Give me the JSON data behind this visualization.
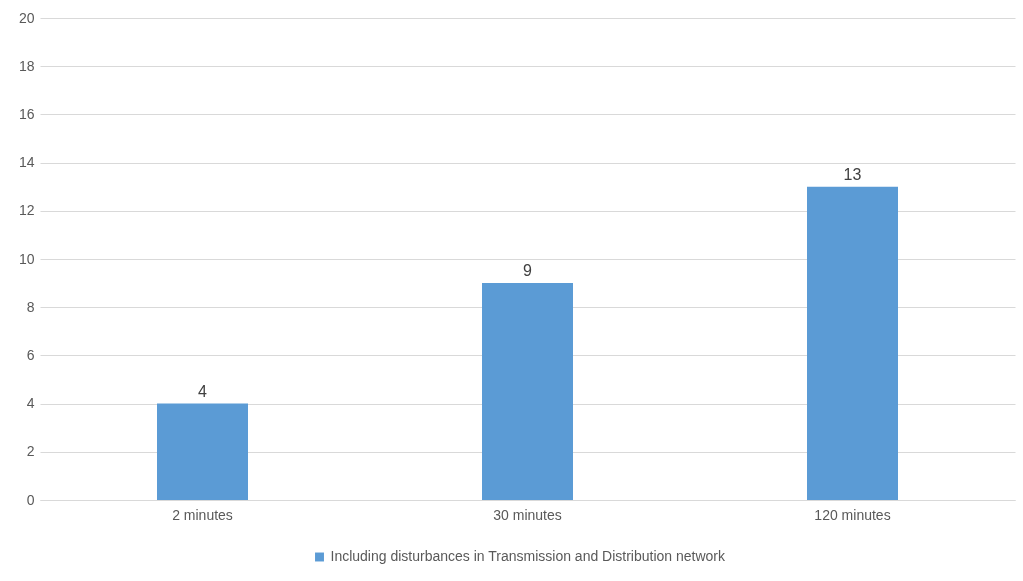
{
  "chart_data": {
    "type": "bar",
    "categories": [
      "2 minutes",
      "30 minutes",
      "120 minutes"
    ],
    "series": [
      {
        "name": "Including disturbances in Transmission and Distribution network",
        "color": "#5b9bd5",
        "values": [
          4,
          9,
          13
        ]
      }
    ],
    "ylim": [
      0,
      20
    ],
    "yticks": [
      0,
      2,
      4,
      6,
      8,
      10,
      12,
      14,
      16,
      18,
      20
    ],
    "grid": "y",
    "legend": "bottom",
    "data_labels": true
  }
}
